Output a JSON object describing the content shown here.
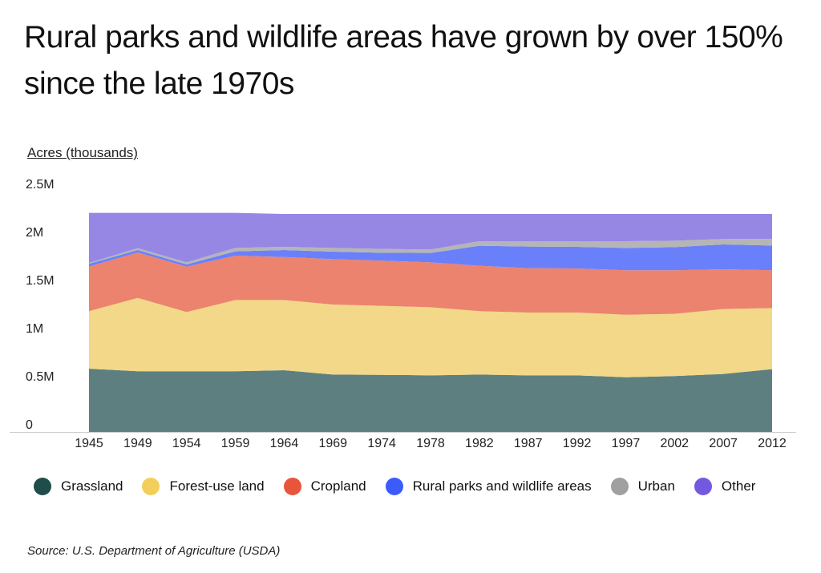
{
  "chart_data": {
    "type": "area",
    "stacked": true,
    "title": "Rural parks and wildlife areas have grown by over 150% since the late 1970s",
    "ylabel": "Acres (thousands)",
    "xlabel": "",
    "ylim": [
      0,
      2500000
    ],
    "yticks": [
      {
        "v": 0,
        "label": "0"
      },
      {
        "v": 500000,
        "label": "0.5M"
      },
      {
        "v": 1000000,
        "label": "1M"
      },
      {
        "v": 1500000,
        "label": "1.5M"
      },
      {
        "v": 2000000,
        "label": "2M"
      },
      {
        "v": 2500000,
        "label": "2.5M"
      }
    ],
    "grid": false,
    "legend_position": "bottom",
    "categories": [
      "1945",
      "1949",
      "1954",
      "1959",
      "1964",
      "1969",
      "1974",
      "1978",
      "1982",
      "1987",
      "1992",
      "1997",
      "2002",
      "2007",
      "2012"
    ],
    "series": [
      {
        "name": "Grassland",
        "color": "#5e7f7f",
        "legend_color": "#1f4d4a",
        "values": [
          658000,
          631000,
          631000,
          631000,
          642000,
          597000,
          594000,
          589000,
          597000,
          589000,
          589000,
          569000,
          581000,
          603000,
          653000
        ]
      },
      {
        "name": "Forest-use land",
        "color": "#f2d888",
        "legend_color": "#f2cf5b",
        "values": [
          598000,
          763000,
          616000,
          741000,
          730000,
          728000,
          717000,
          708000,
          659000,
          653000,
          653000,
          650000,
          647000,
          675000,
          636000
        ]
      },
      {
        "name": "Cropland",
        "color": "#ec836e",
        "legend_color": "#e8553a",
        "values": [
          464000,
          473000,
          472000,
          461000,
          447000,
          472000,
          470000,
          467000,
          472000,
          461000,
          458000,
          462000,
          453000,
          414000,
          392000
        ]
      },
      {
        "name": "Rural parks and wildlife areas",
        "color": "#6a80fb",
        "legend_color": "#3b5bfb",
        "values": [
          28000,
          25000,
          23000,
          45000,
          73000,
          78000,
          83000,
          97000,
          208000,
          225000,
          225000,
          233000,
          241000,
          258000,
          258000
        ]
      },
      {
        "name": "Urban",
        "color": "#b5b5b5",
        "legend_color": "#a0a0a0",
        "values": [
          10000,
          19000,
          22000,
          36000,
          33000,
          39000,
          39000,
          36000,
          47000,
          55000,
          58000,
          69000,
          67000,
          56000,
          67000
        ]
      },
      {
        "name": "Other",
        "color": "#9787e5",
        "legend_color": "#7558e0",
        "values": [
          520000,
          367000,
          514000,
          364000,
          342000,
          353000,
          364000,
          370000,
          284000,
          284000,
          284000,
          284000,
          278000,
          261000,
          261000
        ]
      }
    ],
    "source": "Source:  U.S. Department of Agriculture (USDA)"
  }
}
